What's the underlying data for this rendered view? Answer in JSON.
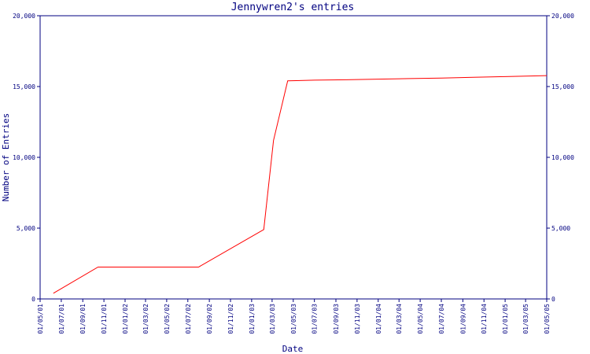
{
  "chart_data": {
    "type": "line",
    "title": "Jennywren2's entries",
    "xlabel": "Date",
    "ylabel": "Number of Entries",
    "ylim": [
      0,
      20000
    ],
    "xlim": [
      "2001-05-01",
      "2005-05-01"
    ],
    "yticks": [
      0,
      5000,
      10000,
      15000,
      20000
    ],
    "ytick_labels": [
      "0",
      "5,000",
      "10,000",
      "15,000",
      "20,000"
    ],
    "xticks": [
      "2001-05-01",
      "2001-07-01",
      "2001-09-01",
      "2001-11-01",
      "2002-01-01",
      "2002-03-01",
      "2002-05-01",
      "2002-07-01",
      "2002-09-01",
      "2002-11-01",
      "2003-01-01",
      "2003-03-01",
      "2003-05-01",
      "2003-07-01",
      "2003-09-01",
      "2003-11-01",
      "2004-01-01",
      "2004-03-01",
      "2004-05-01",
      "2004-07-01",
      "2004-09-01",
      "2004-11-01",
      "2005-01-01",
      "2005-03-01",
      "2005-05-01"
    ],
    "xtick_labels": [
      "01/05/01",
      "01/07/01",
      "01/09/01",
      "01/11/01",
      "01/01/02",
      "01/03/02",
      "01/05/02",
      "01/07/02",
      "01/09/02",
      "01/11/02",
      "01/01/03",
      "01/03/03",
      "01/05/03",
      "01/07/03",
      "01/09/03",
      "01/11/03",
      "01/01/04",
      "01/03/04",
      "01/05/04",
      "01/07/04",
      "01/09/04",
      "01/11/04",
      "01/01/05",
      "01/03/05",
      "01/05/05"
    ],
    "grid": false,
    "series": [
      {
        "color": "#ff0000",
        "x": [
          "2001-06-08",
          "2001-10-15",
          "2002-08-01",
          "2003-02-05",
          "2003-03-05",
          "2003-04-15",
          "2003-07-01",
          "2003-10-01",
          "2004-01-01",
          "2004-04-01",
          "2004-07-01",
          "2004-10-01",
          "2005-01-01",
          "2005-05-01"
        ],
        "y": [
          400,
          2250,
          2250,
          4900,
          11200,
          15400,
          15450,
          15480,
          15520,
          15560,
          15600,
          15650,
          15700,
          15770
        ]
      }
    ]
  },
  "colors": {
    "axis": "#000080",
    "text": "#000080",
    "line": "#ff0000",
    "background": "#ffffff"
  }
}
